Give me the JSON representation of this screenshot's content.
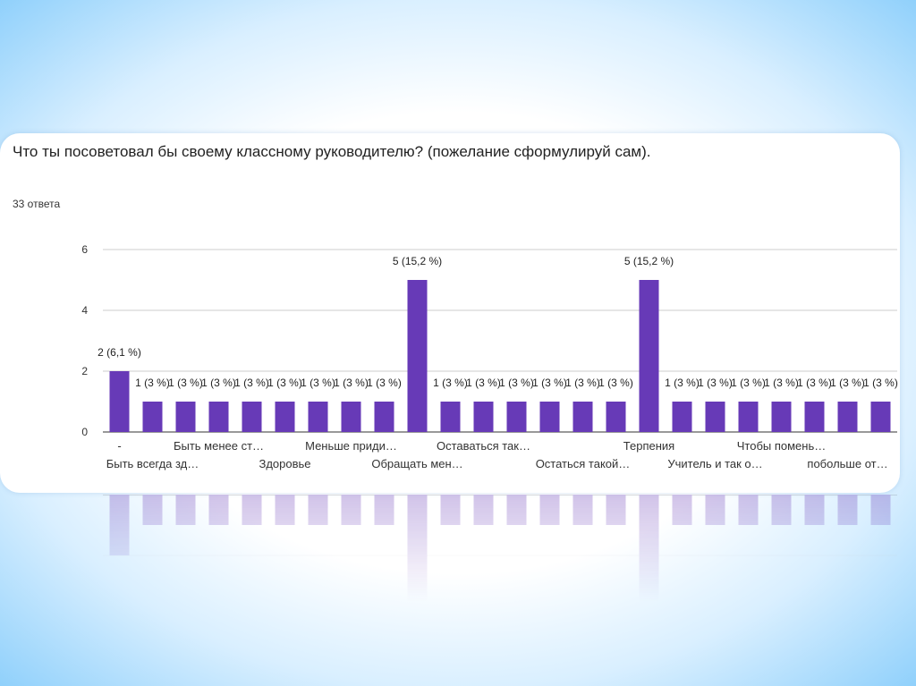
{
  "card": {
    "title": "Что ты посоветовал бы своему классному руководителю? (пожелание сформулируй сам).",
    "responses": "33 ответа"
  },
  "colors": {
    "bar": "#673ab7",
    "grid": "#cccccc",
    "axis_text": "#333333"
  },
  "chart_data": {
    "type": "bar",
    "ylim": [
      0,
      6
    ],
    "yticks": [
      0,
      2,
      4,
      6
    ],
    "grid": true,
    "values": [
      2,
      1,
      1,
      1,
      1,
      1,
      1,
      1,
      1,
      5,
      1,
      1,
      1,
      1,
      1,
      1,
      5,
      1,
      1,
      1,
      1,
      1,
      1,
      1
    ],
    "data_labels": [
      "2 (6,1 %)",
      "1 (3 %)",
      "1 (3 %)",
      "1 (3 %)",
      "1 (3 %)",
      "1 (3 %)",
      "1 (3 %)",
      "1 (3 %)",
      "1 (3 %)",
      "5 (15,2 %)",
      "1 (3 %)",
      "1 (3 %)",
      "1 (3 %)",
      "1 (3 %)",
      "1 (3 %)",
      "1 (3 %)",
      "5 (15,2 %)",
      "1 (3 %)",
      "1 (3 %)",
      "1 (3 %)",
      "1 (3 %)",
      "1 (3 %)",
      "1 (3 %)",
      "1 (3 %)"
    ],
    "x_tick_labels_row1": [
      {
        "bar": 0,
        "text": "-"
      },
      {
        "bar": 3,
        "text": "Быть менее ст…"
      },
      {
        "bar": 7,
        "text": "Меньше приди…"
      },
      {
        "bar": 11,
        "text": "Оставаться так…"
      },
      {
        "bar": 16,
        "text": "Терпения"
      },
      {
        "bar": 20,
        "text": "Чтобы помень…"
      }
    ],
    "x_tick_labels_row2": [
      {
        "bar": 1,
        "text": "Быть всегда зд…"
      },
      {
        "bar": 5,
        "text": "Здоровье"
      },
      {
        "bar": 9,
        "text": "Обращать мен…"
      },
      {
        "bar": 14,
        "text": "Остаться такой…"
      },
      {
        "bar": 18,
        "text": "Учитель и так о…"
      },
      {
        "bar": 22,
        "text": "побольше от…"
      }
    ]
  }
}
